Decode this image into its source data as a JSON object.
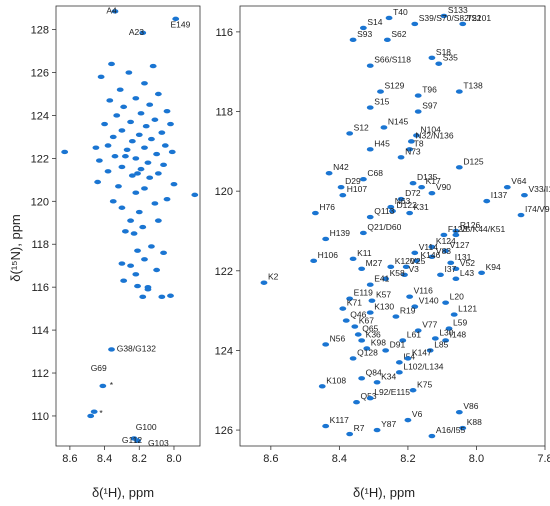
{
  "colors": {
    "peak": "#1a75d2",
    "axis": "#333333",
    "text": "#222222"
  },
  "chart_data": [
    {
      "type": "scatter",
      "xlabel": "δ(¹H), ppm",
      "ylabel": "δ(¹⁵N), ppm",
      "xlim": [
        8.68,
        7.85
      ],
      "ylim": [
        129.1,
        108.6
      ],
      "xticks": [
        8.6,
        8.4,
        8.2,
        8.0
      ],
      "yticks": [
        110,
        112,
        114,
        116,
        118,
        120,
        122,
        124,
        126,
        128
      ],
      "peaks": [
        [
          8.21,
          108.85
        ],
        [
          8.23,
          108.95
        ],
        [
          8.48,
          110.0
        ],
        [
          8.46,
          110.2
        ],
        [
          8.41,
          111.4
        ],
        [
          8.36,
          113.1
        ],
        [
          8.18,
          127.85
        ],
        [
          8.34,
          128.85
        ],
        [
          7.99,
          128.5
        ],
        [
          8.18,
          115.55
        ],
        [
          8.15,
          115.9
        ],
        [
          8.07,
          115.55
        ],
        [
          8.02,
          115.6
        ],
        [
          8.15,
          116.0
        ],
        [
          8.21,
          116.05
        ],
        [
          8.29,
          116.3
        ],
        [
          8.22,
          116.6
        ],
        [
          8.1,
          116.8
        ],
        [
          8.25,
          117.0
        ],
        [
          8.17,
          117.3
        ],
        [
          8.3,
          117.1
        ],
        [
          8.06,
          117.6
        ],
        [
          8.21,
          117.7
        ],
        [
          8.13,
          117.9
        ],
        [
          8.23,
          118.5
        ],
        [
          8.28,
          118.6
        ],
        [
          8.18,
          118.8
        ],
        [
          8.25,
          119.1
        ],
        [
          8.09,
          119.1
        ],
        [
          8.2,
          119.5
        ],
        [
          8.3,
          119.7
        ],
        [
          8.11,
          119.9
        ],
        [
          8.35,
          120.0
        ],
        [
          8.04,
          120.1
        ],
        [
          8.22,
          120.4
        ],
        [
          8.17,
          120.6
        ],
        [
          8.32,
          120.7
        ],
        [
          8.0,
          120.8
        ],
        [
          8.44,
          120.9
        ],
        [
          8.14,
          121.1
        ],
        [
          8.24,
          121.2
        ],
        [
          8.09,
          121.3
        ],
        [
          8.38,
          121.4
        ],
        [
          8.19,
          121.5
        ],
        [
          8.3,
          121.6
        ],
        [
          8.06,
          121.7
        ],
        [
          8.15,
          121.8
        ],
        [
          8.43,
          121.9
        ],
        [
          8.22,
          122.0
        ],
        [
          8.34,
          122.1
        ],
        [
          8.1,
          122.2
        ],
        [
          8.01,
          122.3
        ],
        [
          8.27,
          122.4
        ],
        [
          8.17,
          122.5
        ],
        [
          8.38,
          122.6
        ],
        [
          8.05,
          122.6
        ],
        [
          8.24,
          122.8
        ],
        [
          8.13,
          122.9
        ],
        [
          8.35,
          123.0
        ],
        [
          8.2,
          123.1
        ],
        [
          8.07,
          123.2
        ],
        [
          8.3,
          123.3
        ],
        [
          8.16,
          123.5
        ],
        [
          8.4,
          123.6
        ],
        [
          8.25,
          123.7
        ],
        [
          8.11,
          123.8
        ],
        [
          8.33,
          124.0
        ],
        [
          8.19,
          124.1
        ],
        [
          8.04,
          124.2
        ],
        [
          8.29,
          124.4
        ],
        [
          8.14,
          124.5
        ],
        [
          8.37,
          124.7
        ],
        [
          8.22,
          124.8
        ],
        [
          8.09,
          125.0
        ],
        [
          8.31,
          125.2
        ],
        [
          8.17,
          125.5
        ],
        [
          8.42,
          125.8
        ],
        [
          8.26,
          126.0
        ],
        [
          8.12,
          126.3
        ],
        [
          8.36,
          126.4
        ],
        [
          8.21,
          121.3
        ],
        [
          8.28,
          122.1
        ],
        [
          8.02,
          123.6
        ],
        [
          8.45,
          122.5
        ],
        [
          8.63,
          122.3
        ],
        [
          7.88,
          120.3
        ]
      ]
    },
    {
      "type": "scatter",
      "xlabel": "δ(¹H), ppm",
      "xlim": [
        8.69,
        7.8
      ],
      "ylim": [
        115.35,
        126.4
      ],
      "xticks": [
        8.6,
        8.4,
        8.2,
        8.0,
        7.8
      ],
      "yticks": [
        116,
        118,
        120,
        122,
        124,
        126
      ],
      "peaks": [
        {
          "label": "T40",
          "x": 8.255,
          "y": 115.65
        },
        {
          "label": "S133",
          "x": 8.095,
          "y": 115.6
        },
        {
          "label": "T22",
          "x": 8.04,
          "y": 115.8
        },
        {
          "label": "S14",
          "x": 8.33,
          "y": 115.9
        },
        {
          "label": "S39/S70/S82/S101",
          "x": 8.18,
          "y": 115.8
        },
        {
          "label": "S93",
          "x": 8.36,
          "y": 116.2
        },
        {
          "label": "S62",
          "x": 8.26,
          "y": 116.2
        },
        {
          "label": "S18",
          "x": 8.13,
          "y": 116.65
        },
        {
          "label": "S35",
          "x": 8.11,
          "y": 116.8
        },
        {
          "label": "S66/S118",
          "x": 8.31,
          "y": 116.85
        },
        {
          "label": "S129",
          "x": 8.28,
          "y": 117.5
        },
        {
          "label": "T96",
          "x": 8.17,
          "y": 117.6
        },
        {
          "label": "T138",
          "x": 8.05,
          "y": 117.5
        },
        {
          "label": "S15",
          "x": 8.31,
          "y": 117.9
        },
        {
          "label": "S97",
          "x": 8.17,
          "y": 118.0
        },
        {
          "label": "N145",
          "x": 8.27,
          "y": 118.4
        },
        {
          "label": "S12",
          "x": 8.37,
          "y": 118.55
        },
        {
          "label": "N104",
          "x": 8.175,
          "y": 118.6
        },
        {
          "label": "N32/N136",
          "x": 8.19,
          "y": 118.75
        },
        {
          "label": "H45",
          "x": 8.31,
          "y": 118.95
        },
        {
          "label": "T8",
          "x": 8.195,
          "y": 118.95
        },
        {
          "label": "N73",
          "x": 8.22,
          "y": 119.15
        },
        {
          "label": "D125",
          "x": 8.05,
          "y": 119.4
        },
        {
          "label": "N42",
          "x": 8.43,
          "y": 119.55
        },
        {
          "label": "D135",
          "x": 8.185,
          "y": 119.8
        },
        {
          "label": "C68",
          "x": 8.33,
          "y": 119.7
        },
        {
          "label": "K17",
          "x": 8.16,
          "y": 119.9
        },
        {
          "label": "D29",
          "x": 8.395,
          "y": 119.9
        },
        {
          "label": "V64",
          "x": 7.91,
          "y": 119.9
        },
        {
          "label": "V90",
          "x": 8.13,
          "y": 120.05
        },
        {
          "label": "H107",
          "x": 8.39,
          "y": 120.1
        },
        {
          "label": "D72",
          "x": 8.22,
          "y": 120.2
        },
        {
          "label": "I137",
          "x": 7.97,
          "y": 120.25
        },
        {
          "label": "V33/I105",
          "x": 7.86,
          "y": 120.1
        },
        {
          "label": "N63",
          "x": 8.25,
          "y": 120.4
        },
        {
          "label": "D122",
          "x": 8.245,
          "y": 120.5
        },
        {
          "label": "K31",
          "x": 8.195,
          "y": 120.55
        },
        {
          "label": "H76",
          "x": 8.47,
          "y": 120.55
        },
        {
          "label": "Q113",
          "x": 8.31,
          "y": 120.65
        },
        {
          "label": "I74/V95",
          "x": 7.87,
          "y": 120.6
        },
        {
          "label": "R126",
          "x": 8.06,
          "y": 121.0
        },
        {
          "label": "V5/K44/K51",
          "x": 8.06,
          "y": 121.1
        },
        {
          "label": "F123",
          "x": 8.095,
          "y": 121.1
        },
        {
          "label": "Q21/D60",
          "x": 8.33,
          "y": 121.05
        },
        {
          "label": "H139",
          "x": 8.44,
          "y": 121.2
        },
        {
          "label": "K124",
          "x": 8.13,
          "y": 121.4
        },
        {
          "label": "V127",
          "x": 8.09,
          "y": 121.5
        },
        {
          "label": "V114",
          "x": 8.18,
          "y": 121.55
        },
        {
          "label": "V83",
          "x": 8.13,
          "y": 121.65
        },
        {
          "label": "H106",
          "x": 8.475,
          "y": 121.75
        },
        {
          "label": "K11",
          "x": 8.36,
          "y": 121.7
        },
        {
          "label": "K146",
          "x": 8.175,
          "y": 121.75
        },
        {
          "label": "I131",
          "x": 8.075,
          "y": 121.8
        },
        {
          "label": "V25",
          "x": 8.205,
          "y": 121.9
        },
        {
          "label": "K120",
          "x": 8.25,
          "y": 121.9
        },
        {
          "label": "M27",
          "x": 8.335,
          "y": 121.95
        },
        {
          "label": "V52",
          "x": 8.06,
          "y": 121.95
        },
        {
          "label": "K94",
          "x": 7.985,
          "y": 122.05
        },
        {
          "label": "I37",
          "x": 8.105,
          "y": 122.1
        },
        {
          "label": "V3",
          "x": 8.21,
          "y": 122.1
        },
        {
          "label": "K58",
          "x": 8.265,
          "y": 122.2
        },
        {
          "label": "L43",
          "x": 8.06,
          "y": 122.2
        },
        {
          "label": "K2",
          "x": 8.62,
          "y": 122.3
        },
        {
          "label": "E41",
          "x": 8.31,
          "y": 122.35
        },
        {
          "label": "E119",
          "x": 8.37,
          "y": 122.7
        },
        {
          "label": "V116",
          "x": 8.195,
          "y": 122.65
        },
        {
          "label": "K57",
          "x": 8.305,
          "y": 122.75
        },
        {
          "label": "L20",
          "x": 8.09,
          "y": 122.8
        },
        {
          "label": "K71",
          "x": 8.39,
          "y": 122.95
        },
        {
          "label": "V140",
          "x": 8.18,
          "y": 122.9
        },
        {
          "label": "K130",
          "x": 8.31,
          "y": 123.05
        },
        {
          "label": "R19",
          "x": 8.235,
          "y": 123.15
        },
        {
          "label": "L121",
          "x": 8.065,
          "y": 123.1
        },
        {
          "label": "Q46",
          "x": 8.38,
          "y": 123.25
        },
        {
          "label": "K67",
          "x": 8.355,
          "y": 123.4
        },
        {
          "label": "V77",
          "x": 8.17,
          "y": 123.5
        },
        {
          "label": "L59",
          "x": 8.08,
          "y": 123.45
        },
        {
          "label": "Q65",
          "x": 8.345,
          "y": 123.6
        },
        {
          "label": "K36",
          "x": 8.335,
          "y": 123.75
        },
        {
          "label": "L61",
          "x": 8.215,
          "y": 123.75
        },
        {
          "label": "L30",
          "x": 8.12,
          "y": 123.7
        },
        {
          "label": "I148",
          "x": 8.09,
          "y": 123.75
        },
        {
          "label": "N56",
          "x": 8.44,
          "y": 123.85
        },
        {
          "label": "K98",
          "x": 8.32,
          "y": 123.95
        },
        {
          "label": "D91",
          "x": 8.265,
          "y": 124.0
        },
        {
          "label": "L85",
          "x": 8.135,
          "y": 124.0
        },
        {
          "label": "Q128",
          "x": 8.36,
          "y": 124.2
        },
        {
          "label": "I54",
          "x": 8.225,
          "y": 124.3
        },
        {
          "label": "K147",
          "x": 8.2,
          "y": 124.2
        },
        {
          "label": "L102/L134",
          "x": 8.225,
          "y": 124.55
        },
        {
          "label": "Q84",
          "x": 8.335,
          "y": 124.7
        },
        {
          "label": "K34",
          "x": 8.29,
          "y": 124.8
        },
        {
          "label": "K108",
          "x": 8.45,
          "y": 124.9
        },
        {
          "label": "K75",
          "x": 8.185,
          "y": 125.0
        },
        {
          "label": "Q53",
          "x": 8.35,
          "y": 125.3
        },
        {
          "label": "L92/E115",
          "x": 8.31,
          "y": 125.2
        },
        {
          "label": "V86",
          "x": 8.05,
          "y": 125.55
        },
        {
          "label": "V6",
          "x": 8.2,
          "y": 125.75
        },
        {
          "label": "K117",
          "x": 8.44,
          "y": 125.9
        },
        {
          "label": "K88",
          "x": 8.04,
          "y": 125.95
        },
        {
          "label": "Y87",
          "x": 8.29,
          "y": 126.0
        },
        {
          "label": "R7",
          "x": 8.37,
          "y": 126.1
        },
        {
          "label": "A16/I55",
          "x": 8.13,
          "y": 126.15
        }
      ]
    }
  ],
  "left_labels": [
    {
      "text": "G112",
      "x": 8.3,
      "y": 108.75
    },
    {
      "text": "G103",
      "x": 8.15,
      "y": 108.6
    },
    {
      "text": "G100",
      "x": 8.22,
      "y": 109.35
    },
    {
      "text": "*",
      "x": 8.43,
      "y": 110.0
    },
    {
      "text": "G69",
      "x": 8.48,
      "y": 112.1
    },
    {
      "text": "*",
      "x": 8.37,
      "y": 111.3
    },
    {
      "text": "G38/G132",
      "x": 8.33,
      "y": 113.0
    },
    {
      "text": "A23",
      "x": 8.26,
      "y": 127.75
    },
    {
      "text": "E149",
      "x": 8.02,
      "y": 128.1
    },
    {
      "text": "A4",
      "x": 8.39,
      "y": 128.75
    }
  ]
}
